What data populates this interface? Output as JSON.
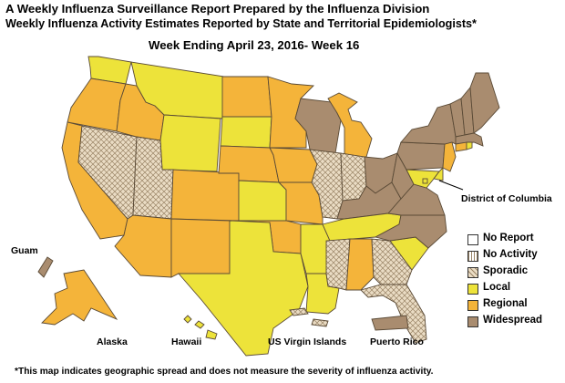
{
  "header": {
    "title": "A Weekly Influenza Surveillance Report Prepared by the Influenza Division",
    "subtitle": "Weekly Influenza Activity Estimates Reported by State and Territorial Epidemiologists*",
    "week": "Week Ending April 23, 2016- Week 16"
  },
  "colors": {
    "no_report": "#ffffff",
    "no_activity": "#ffffff",
    "sporadic": "#eadcc4",
    "local": "#ede33a",
    "regional": "#f4b43a",
    "widespread": "#a98c6f",
    "border": "#5a4a36"
  },
  "legend": {
    "items": [
      {
        "key": "no_report",
        "label": "No Report"
      },
      {
        "key": "no_activity",
        "label": "No Activity"
      },
      {
        "key": "sporadic",
        "label": "Sporadic"
      },
      {
        "key": "local",
        "label": "Local"
      },
      {
        "key": "regional",
        "label": "Regional"
      },
      {
        "key": "widespread",
        "label": "Widespread"
      }
    ]
  },
  "labels": {
    "district_of_columbia": "District of Columbia",
    "guam": "Guam",
    "alaska": "Alaska",
    "hawaii": "Hawaii",
    "usvi": "US Virgin Islands",
    "puerto_rico": "Puerto Rico"
  },
  "states": [
    {
      "name": "WA",
      "level": "local"
    },
    {
      "name": "OR",
      "level": "regional"
    },
    {
      "name": "CA",
      "level": "regional"
    },
    {
      "name": "NV",
      "level": "sporadic"
    },
    {
      "name": "ID",
      "level": "regional"
    },
    {
      "name": "MT",
      "level": "local"
    },
    {
      "name": "WY",
      "level": "local"
    },
    {
      "name": "UT",
      "level": "sporadic"
    },
    {
      "name": "AZ",
      "level": "regional"
    },
    {
      "name": "CO",
      "level": "regional"
    },
    {
      "name": "NM",
      "level": "regional"
    },
    {
      "name": "ND",
      "level": "regional"
    },
    {
      "name": "SD",
      "level": "local"
    },
    {
      "name": "NE",
      "level": "regional"
    },
    {
      "name": "KS",
      "level": "local"
    },
    {
      "name": "OK",
      "level": "regional"
    },
    {
      "name": "TX",
      "level": "local"
    },
    {
      "name": "MN",
      "level": "regional"
    },
    {
      "name": "IA",
      "level": "regional"
    },
    {
      "name": "MO",
      "level": "regional"
    },
    {
      "name": "AR",
      "level": "local"
    },
    {
      "name": "LA",
      "level": "local"
    },
    {
      "name": "WI",
      "level": "widespread"
    },
    {
      "name": "IL",
      "level": "sporadic"
    },
    {
      "name": "MI",
      "level": "regional"
    },
    {
      "name": "IN",
      "level": "sporadic"
    },
    {
      "name": "OH",
      "level": "widespread"
    },
    {
      "name": "KY",
      "level": "widespread"
    },
    {
      "name": "TN",
      "level": "local"
    },
    {
      "name": "MS",
      "level": "sporadic"
    },
    {
      "name": "AL",
      "level": "regional"
    },
    {
      "name": "GA",
      "level": "sporadic"
    },
    {
      "name": "FL",
      "level": "sporadic"
    },
    {
      "name": "SC",
      "level": "local"
    },
    {
      "name": "NC",
      "level": "widespread"
    },
    {
      "name": "VA",
      "level": "widespread"
    },
    {
      "name": "WV",
      "level": "widespread"
    },
    {
      "name": "PA",
      "level": "widespread"
    },
    {
      "name": "NY",
      "level": "widespread"
    },
    {
      "name": "VT",
      "level": "widespread"
    },
    {
      "name": "NH",
      "level": "widespread"
    },
    {
      "name": "ME",
      "level": "widespread"
    },
    {
      "name": "MA",
      "level": "widespread"
    },
    {
      "name": "CT",
      "level": "regional"
    },
    {
      "name": "RI",
      "level": "local"
    },
    {
      "name": "NJ",
      "level": "regional"
    },
    {
      "name": "DE",
      "level": "local"
    },
    {
      "name": "MD",
      "level": "local"
    },
    {
      "name": "DC",
      "level": "local"
    },
    {
      "name": "AK",
      "level": "regional"
    },
    {
      "name": "HI",
      "level": "local"
    },
    {
      "name": "GU",
      "level": "widespread"
    },
    {
      "name": "VI",
      "level": "sporadic"
    },
    {
      "name": "PR",
      "level": "widespread"
    }
  ],
  "footnote": "*This map indicates geographic spread and does not measure the severity of influenza activity."
}
